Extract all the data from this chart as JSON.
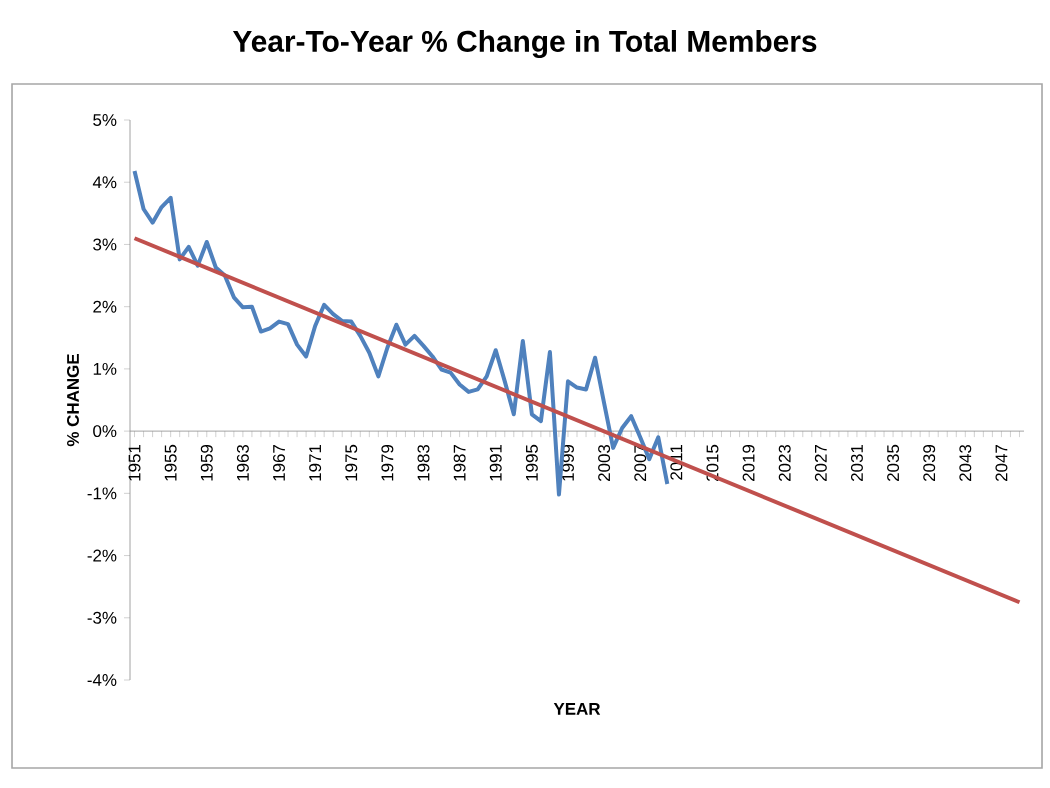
{
  "chart_data": {
    "type": "line",
    "title": "Year-To-Year % Change in Total Members",
    "xlabel": "YEAR",
    "ylabel": "% CHANGE",
    "xlim": [
      1950.5,
      2049.5
    ],
    "ylim": [
      -4,
      5
    ],
    "yticks": [
      {
        "value": -4,
        "label": "-4%"
      },
      {
        "value": -3,
        "label": "-3%"
      },
      {
        "value": -2,
        "label": "-2%"
      },
      {
        "value": -1,
        "label": "-1%"
      },
      {
        "value": 0,
        "label": "0%"
      },
      {
        "value": 1,
        "label": "1%"
      },
      {
        "value": 2,
        "label": "2%"
      },
      {
        "value": 3,
        "label": "3%"
      },
      {
        "value": 4,
        "label": "4%"
      },
      {
        "value": 5,
        "label": "5%"
      }
    ],
    "xticks": [
      1951,
      {
        "value": 1952,
        "label": null
      },
      {
        "value": 1953,
        "label": null
      },
      {
        "value": 1954,
        "label": null
      },
      1955,
      {
        "value": 1956,
        "label": null
      },
      {
        "value": 1957,
        "label": null
      },
      {
        "value": 1958,
        "label": null
      },
      1959,
      {
        "value": 1960,
        "label": null
      },
      {
        "value": 1961,
        "label": null
      },
      {
        "value": 1962,
        "label": null
      },
      1963,
      {
        "value": 1964,
        "label": null
      },
      {
        "value": 1965,
        "label": null
      },
      {
        "value": 1966,
        "label": null
      },
      1967,
      {
        "value": 1968,
        "label": null
      },
      {
        "value": 1969,
        "label": null
      },
      {
        "value": 1970,
        "label": null
      },
      1971,
      {
        "value": 1972,
        "label": null
      },
      {
        "value": 1973,
        "label": null
      },
      {
        "value": 1974,
        "label": null
      },
      1975,
      {
        "value": 1976,
        "label": null
      },
      {
        "value": 1977,
        "label": null
      },
      {
        "value": 1978,
        "label": null
      },
      1979,
      {
        "value": 1980,
        "label": null
      },
      {
        "value": 1981,
        "label": null
      },
      {
        "value": 1982,
        "label": null
      },
      1983,
      {
        "value": 1984,
        "label": null
      },
      {
        "value": 1985,
        "label": null
      },
      {
        "value": 1986,
        "label": null
      },
      1987,
      {
        "value": 1988,
        "label": null
      },
      {
        "value": 1989,
        "label": null
      },
      {
        "value": 1990,
        "label": null
      },
      1991,
      {
        "value": 1992,
        "label": null
      },
      {
        "value": 1993,
        "label": null
      },
      {
        "value": 1994,
        "label": null
      },
      1995,
      {
        "value": 1996,
        "label": null
      },
      {
        "value": 1997,
        "label": null
      },
      {
        "value": 1998,
        "label": null
      },
      1999,
      {
        "value": 2000,
        "label": null
      },
      {
        "value": 2001,
        "label": null
      },
      {
        "value": 2002,
        "label": null
      },
      2003,
      {
        "value": 2004,
        "label": null
      },
      {
        "value": 2005,
        "label": null
      },
      {
        "value": 2006,
        "label": null
      },
      2007,
      {
        "value": 2008,
        "label": null
      },
      {
        "value": 2009,
        "label": null
      },
      {
        "value": 2010,
        "label": null
      },
      2011,
      {
        "value": 2012,
        "label": null
      },
      {
        "value": 2013,
        "label": null
      },
      {
        "value": 2014,
        "label": null
      },
      2015,
      {
        "value": 2016,
        "label": null
      },
      {
        "value": 2017,
        "label": null
      },
      {
        "value": 2018,
        "label": null
      },
      2019,
      {
        "value": 2020,
        "label": null
      },
      {
        "value": 2021,
        "label": null
      },
      {
        "value": 2022,
        "label": null
      },
      2023,
      {
        "value": 2024,
        "label": null
      },
      {
        "value": 2025,
        "label": null
      },
      {
        "value": 2026,
        "label": null
      },
      2027,
      {
        "value": 2028,
        "label": null
      },
      {
        "value": 2029,
        "label": null
      },
      {
        "value": 2030,
        "label": null
      },
      2031,
      {
        "value": 2032,
        "label": null
      },
      {
        "value": 2033,
        "label": null
      },
      {
        "value": 2034,
        "label": null
      },
      2035,
      {
        "value": 2036,
        "label": null
      },
      {
        "value": 2037,
        "label": null
      },
      {
        "value": 2038,
        "label": null
      },
      2039,
      {
        "value": 2040,
        "label": null
      },
      {
        "value": 2041,
        "label": null
      },
      {
        "value": 2042,
        "label": null
      },
      2043,
      {
        "value": 2044,
        "label": null
      },
      {
        "value": 2045,
        "label": null
      },
      {
        "value": 2046,
        "label": null
      },
      2047,
      {
        "value": 2048,
        "label": null
      },
      {
        "value": 2049,
        "label": null
      }
    ],
    "series": [
      {
        "color": "#4f81bd",
        "x": [
          1951,
          1952,
          1953,
          1954,
          1955,
          1956,
          1957,
          1958,
          1959,
          1960,
          1961,
          1962,
          1963,
          1964,
          1965,
          1966,
          1967,
          1968,
          1969,
          1970,
          1971,
          1972,
          1973,
          1974,
          1975,
          1976,
          1977,
          1978,
          1979,
          1980,
          1981,
          1982,
          1983,
          1984,
          1985,
          1986,
          1987,
          1988,
          1989,
          1990,
          1991,
          1992,
          1993,
          1994,
          1995,
          1996,
          1997,
          1998,
          1999,
          2000,
          2001,
          2002,
          2003,
          2004,
          2005,
          2006,
          2007,
          2008,
          2009,
          2010
        ],
        "values": [
          4.18,
          3.57,
          3.35,
          3.6,
          3.75,
          2.76,
          2.96,
          2.66,
          3.04,
          2.63,
          2.5,
          2.15,
          1.99,
          2.0,
          1.6,
          1.65,
          1.76,
          1.72,
          1.39,
          1.2,
          1.69,
          2.03,
          1.88,
          1.77,
          1.76,
          1.53,
          1.26,
          0.88,
          1.34,
          1.71,
          1.39,
          1.53,
          1.37,
          1.2,
          0.99,
          0.94,
          0.75,
          0.63,
          0.67,
          0.88,
          1.3,
          0.8,
          0.27,
          1.45,
          0.27,
          0.16,
          1.27,
          -1.02,
          0.8,
          0.7,
          0.67,
          1.18,
          0.45,
          -0.27,
          0.05,
          0.24,
          -0.1,
          -0.45,
          -0.1,
          -0.85
        ]
      },
      {
        "color": "#c0504d",
        "x": [
          1951,
          2049
        ],
        "values": [
          3.1,
          -2.75
        ]
      }
    ],
    "grid": false,
    "legend": false,
    "marker": "none",
    "line_style": "solid"
  }
}
